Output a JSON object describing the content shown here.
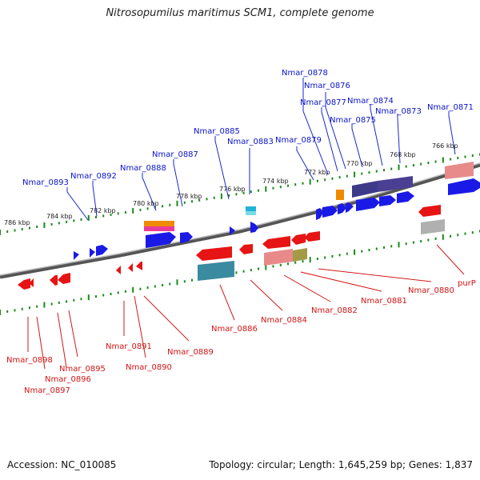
{
  "title": "Nitrosopumilus maritimus SCM1, complete genome",
  "footer": {
    "accession": "Accession: NC_010085",
    "summary": "Topology: circular; Length: 1,645,259 bp; Genes: 1,837"
  },
  "colors": {
    "forward_labels": "#0a14c8",
    "reverse_labels": "#d21414",
    "forward_gene": "#0a0ae6",
    "reverse_gene": "#e61414",
    "ruler_tick": "#1a8a1a",
    "genome_line": "#888888"
  },
  "ruler_labels": [
    "786 kbp",
    "784 kbp",
    "782 kbp",
    "780 kbp",
    "778 kbp",
    "776 kbp",
    "774 kbp",
    "772 kbp",
    "770 kbp",
    "768 kbp",
    "766 kbp"
  ],
  "top_labels": [
    "Nmar_0893",
    "Nmar_0892",
    "Nmar_0888",
    "Nmar_0887",
    "Nmar_0885",
    "Nmar_0883",
    "Nmar_0879",
    "Nmar_0878",
    "Nmar_0876",
    "Nmar_0877",
    "Nmar_0874",
    "Nmar_0875",
    "Nmar_0873",
    "Nmar_0871"
  ],
  "bottom_labels": [
    "Nmar_0898",
    "Nmar_0896",
    "Nmar_0897",
    "Nmar_0895",
    "Nmar_0891",
    "Nmar_0890",
    "Nmar_0889",
    "Nmar_0886",
    "Nmar_0884",
    "Nmar_0882",
    "Nmar_0881",
    "Nmar_0880",
    "purP"
  ]
}
